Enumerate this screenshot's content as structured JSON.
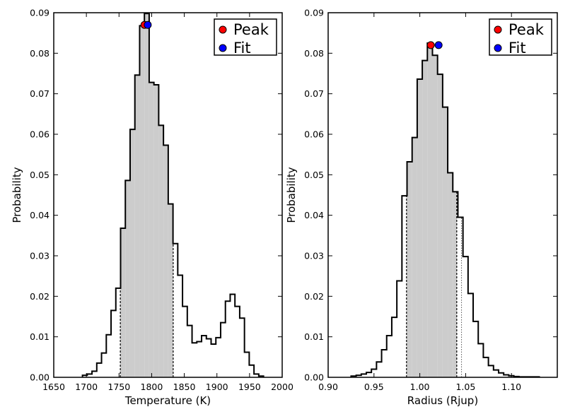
{
  "chart_data": [
    {
      "type": "histogram",
      "xlabel": "Temperature (K)",
      "ylabel": "Probability",
      "xlim": [
        1650,
        2000
      ],
      "ylim": [
        0,
        0.09
      ],
      "xticks": [
        1650,
        1700,
        1750,
        1800,
        1850,
        1900,
        1950,
        2000
      ],
      "xtick_labels": [
        "1650",
        "1700",
        "1750",
        "1800",
        "1850",
        "1900",
        "1950",
        "2000"
      ],
      "yticks": [
        0,
        0.01,
        0.02,
        0.03,
        0.04,
        0.05,
        0.06,
        0.07,
        0.08,
        0.09
      ],
      "ytick_labels": [
        "0.00",
        "0.01",
        "0.02",
        "0.03",
        "0.04",
        "0.05",
        "0.06",
        "0.07",
        "0.08",
        "0.09"
      ],
      "bin_start": 1694,
      "bin_width": 7.3,
      "values": [
        0.0005,
        0.0008,
        0.0015,
        0.0035,
        0.006,
        0.0105,
        0.0165,
        0.022,
        0.0368,
        0.0486,
        0.0612,
        0.0746,
        0.0868,
        0.0898,
        0.0728,
        0.0722,
        0.0622,
        0.0573,
        0.0428,
        0.033,
        0.0252,
        0.0175,
        0.0128,
        0.0085,
        0.0088,
        0.0103,
        0.0095,
        0.0082,
        0.0098,
        0.0135,
        0.0188,
        0.0205,
        0.0175,
        0.0146,
        0.0062,
        0.003,
        0.0008,
        0.0003
      ],
      "shade_range": [
        1752,
        1833
      ],
      "peak": {
        "x": 1789,
        "y": 0.087
      },
      "fit": {
        "x": 1794,
        "y": 0.087
      },
      "legend": [
        "Peak",
        "Fit"
      ],
      "legend_position": "top-right",
      "colors": {
        "peak": "#ff0000",
        "fit": "#0000ff",
        "shade": "#cccccc"
      }
    },
    {
      "type": "histogram",
      "xlabel": "Radius (Rjup)",
      "ylabel": "Probability",
      "xlim": [
        0.9,
        1.15
      ],
      "ylim": [
        0,
        0.09
      ],
      "xticks": [
        0.9,
        0.95,
        1.0,
        1.05,
        1.1
      ],
      "xtick_labels": [
        "0.90",
        "0.95",
        "1.00",
        "1.05",
        "1.10"
      ],
      "yticks": [
        0,
        0.01,
        0.02,
        0.03,
        0.04,
        0.05,
        0.06,
        0.07,
        0.08,
        0.09
      ],
      "ytick_labels": [
        "0.00",
        "0.01",
        "0.02",
        "0.03",
        "0.04",
        "0.05",
        "0.06",
        "0.07",
        "0.08",
        "0.09"
      ],
      "bin_start": 0.925,
      "bin_width": 0.00555,
      "values": [
        0.0003,
        0.0005,
        0.0008,
        0.0012,
        0.002,
        0.0038,
        0.0068,
        0.0103,
        0.0148,
        0.0238,
        0.0448,
        0.0532,
        0.0592,
        0.0736,
        0.0782,
        0.0825,
        0.0795,
        0.0748,
        0.0667,
        0.0505,
        0.0458,
        0.0395,
        0.0298,
        0.0207,
        0.0138,
        0.0083,
        0.0049,
        0.0029,
        0.0018,
        0.0011,
        0.0006,
        0.0004,
        0.0002,
        0.0001,
        0.0001,
        0.0001,
        0.0001
      ],
      "shade_range": [
        0.9855,
        1.0403
      ],
      "extra_range": [
        1.0403,
        1.0455
      ],
      "peak": {
        "x": 1.012,
        "y": 0.082
      },
      "fit": {
        "x": 1.0205,
        "y": 0.082
      },
      "legend": [
        "Peak",
        "Fit"
      ],
      "legend_position": "top-right",
      "colors": {
        "peak": "#ff0000",
        "fit": "#0000ff",
        "shade": "#cccccc"
      }
    }
  ]
}
